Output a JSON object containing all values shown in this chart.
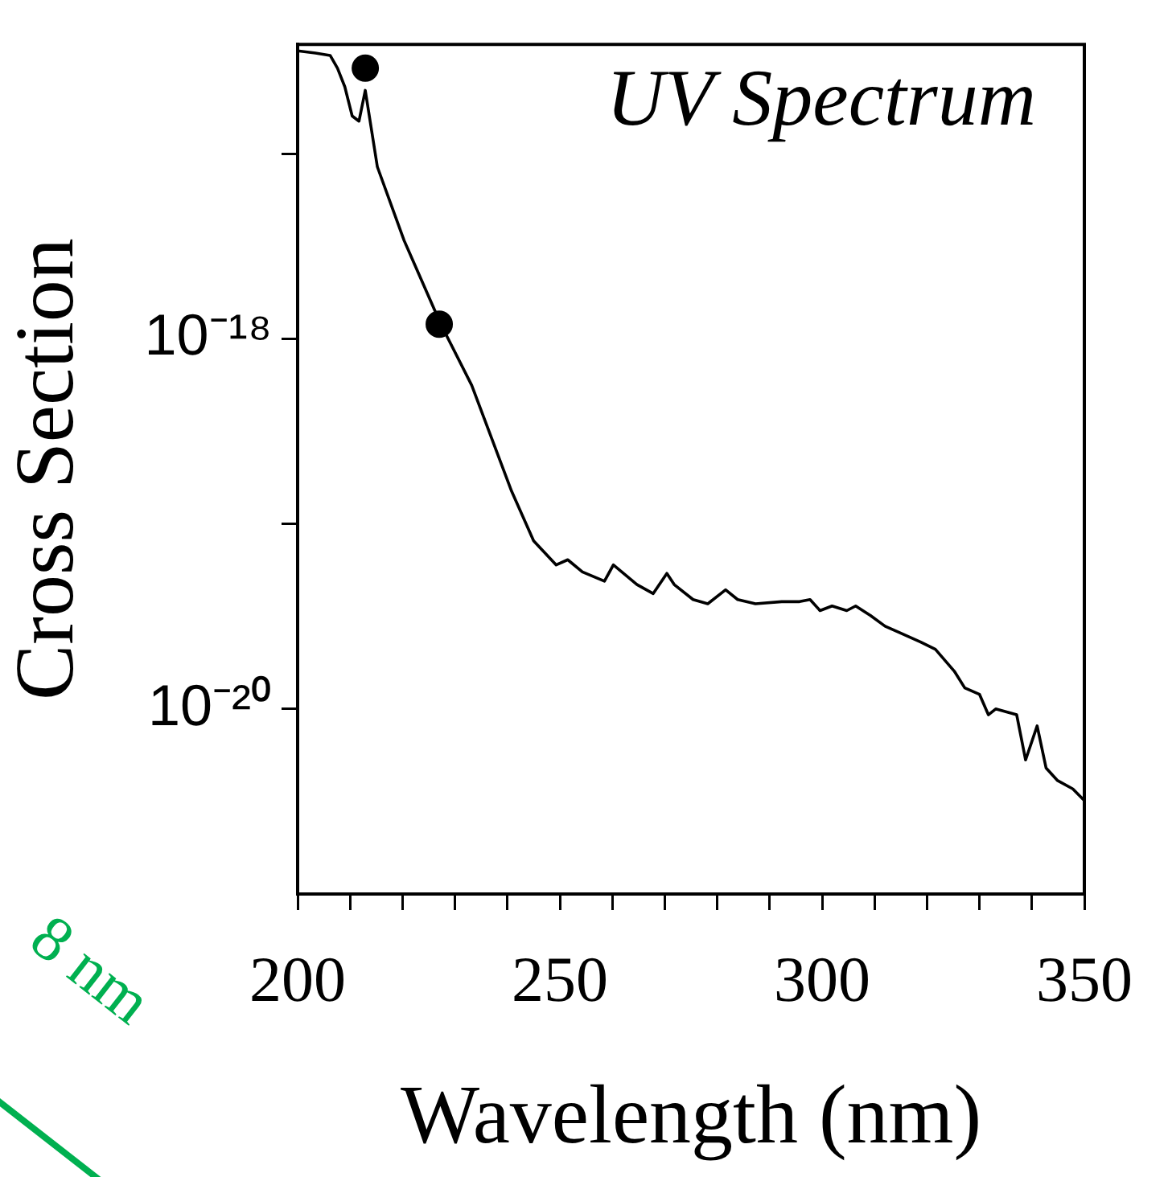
{
  "chart_data": {
    "type": "line",
    "title": "UV Spectrum",
    "xlabel": "Wavelength (nm)",
    "ylabel": "Cross Section",
    "log": "y",
    "grid": false,
    "legend": false,
    "xlim": [
      200,
      350
    ],
    "ylim": [
      1e-21,
      3.9e-17
    ],
    "xticks": [
      200,
      {
        "value": 210,
        "label": null
      },
      {
        "value": 220,
        "label": null
      },
      {
        "value": 230,
        "label": null
      },
      {
        "value": 240,
        "label": null
      },
      250,
      {
        "value": 260,
        "label": null
      },
      {
        "value": 270,
        "label": null
      },
      {
        "value": 280,
        "label": null
      },
      {
        "value": 290,
        "label": null
      },
      300,
      {
        "value": 310,
        "label": null
      },
      {
        "value": 320,
        "label": null
      },
      {
        "value": 330,
        "label": null
      },
      {
        "value": 340,
        "label": null
      },
      350
    ],
    "yticks": [
      {
        "value": 1e-17,
        "label": null
      },
      {
        "value": 1e-18,
        "label": "10⁻¹⁸"
      },
      {
        "value": 1e-19,
        "label": null
      },
      {
        "value": 1e-20,
        "label": "10⁻²⁰"
      }
    ],
    "annotations": [
      "8 nm"
    ],
    "series": [
      {
        "color": "#000000",
        "x": [
          200,
          203.4,
          206.2,
          207.6,
          209.0,
          210.4,
          211.7,
          212.9,
          215.2,
          220.3,
          227.3,
          233.2,
          240.8,
          245.0,
          249.3,
          251.5,
          254.3,
          258.5,
          260.2,
          264.7,
          267.8,
          270.4,
          271.8,
          275.4,
          278.2,
          281.6,
          283.9,
          287.3,
          292.3,
          295.7,
          297.7,
          299.6,
          301.9,
          304.7,
          306.4,
          309.2,
          312.0,
          314.6,
          318.8,
          321.6,
          325.2,
          327.2,
          330.0,
          331.7,
          333.1,
          337.1,
          338.8,
          341.0,
          342.7,
          344.9,
          347.8,
          350.0
        ],
        "values": [
          3.6e-17,
          3.5e-17,
          3.4e-17,
          2.9e-17,
          2.3e-17,
          1.6e-17,
          1.5e-17,
          2.2e-17,
          8.5e-18,
          3.4e-18,
          1.2e-18,
          5.6e-19,
          1.5e-19,
          8.1e-20,
          6e-20,
          6.4e-20,
          5.5e-20,
          4.9e-20,
          6e-20,
          4.7e-20,
          4.2e-20,
          5.4e-20,
          4.7e-20,
          3.9e-20,
          3.7e-20,
          4.4e-20,
          3.9e-20,
          3.7e-20,
          3.8e-20,
          3.8e-20,
          3.9e-20,
          3.4e-20,
          3.6e-20,
          3.4e-20,
          3.6e-20,
          3.2e-20,
          2.8e-20,
          2.6e-20,
          2.3e-20,
          2.1e-20,
          1.6e-20,
          1.3e-20,
          1.2e-20,
          9.3e-21,
          1e-20,
          9.3e-21,
          5.3e-21,
          8.1e-21,
          4.8e-21,
          4.1e-21,
          3.7e-21,
          3.2e-21
        ]
      },
      {
        "type": "scatter",
        "color": "#000000",
        "marker": "circle",
        "x": [
          212.9,
          227.0
        ],
        "values": [
          2.9e-17,
          1.2e-18
        ]
      }
    ]
  }
}
